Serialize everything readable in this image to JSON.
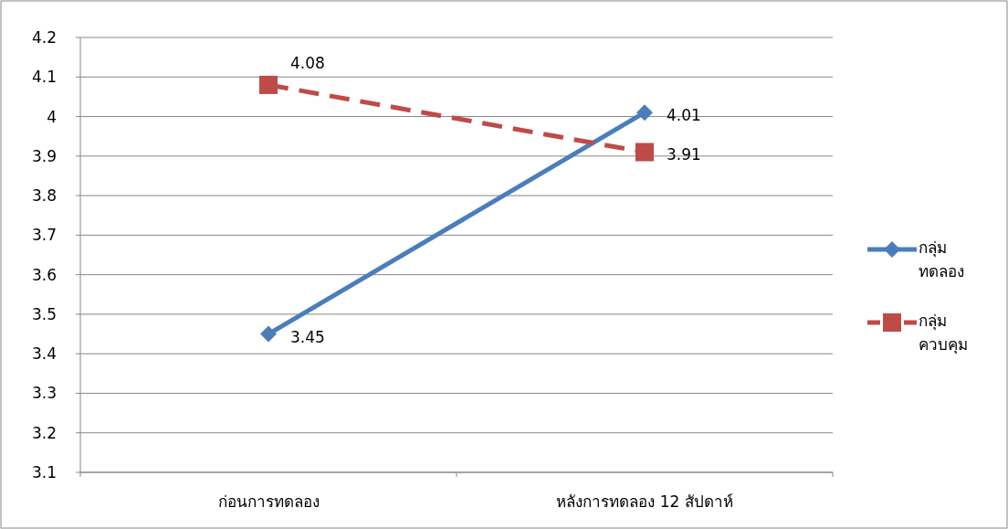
{
  "chart_data": {
    "type": "line",
    "categories": [
      "ก่อนการทดลอง",
      "หลังการทดลอง 12 สัปดาห์"
    ],
    "series": [
      {
        "name": "กลุ่มทดลอง",
        "color": "#4a7ebb",
        "values": [
          3.45,
          4.01
        ],
        "marker": "diamond",
        "line_style": "solid"
      },
      {
        "name": "กลุ่มควบคุม",
        "color": "#be4b48",
        "values": [
          4.08,
          3.91
        ],
        "marker": "square",
        "line_style": "dashed"
      }
    ],
    "ylim": [
      3.1,
      4.2
    ],
    "yticks": [
      3.1,
      3.2,
      3.3,
      3.4,
      3.5,
      3.6,
      3.7,
      3.8,
      3.9,
      4,
      4.1,
      4.2
    ],
    "grid": "y",
    "legend": "right",
    "data_labels": true
  }
}
